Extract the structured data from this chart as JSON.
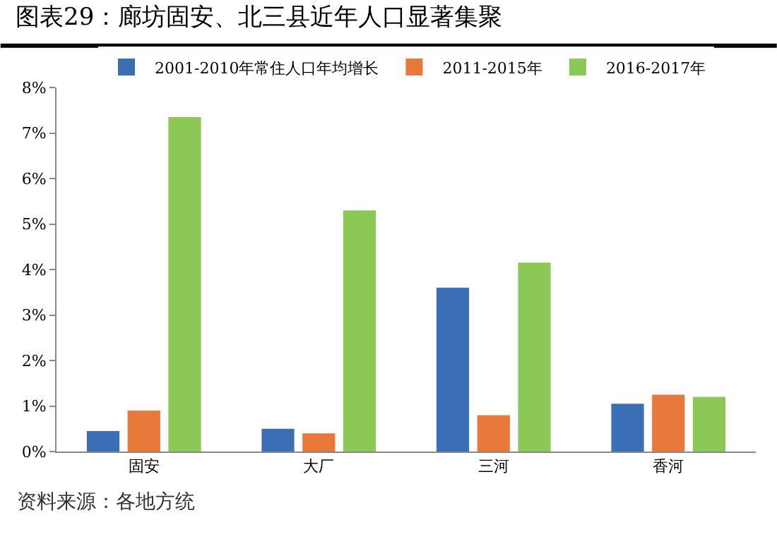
{
  "chart_data": {
    "type": "bar",
    "title": "图表29：廊坊固安、北三县近年人口显著集聚",
    "categories": [
      "固安",
      "大厂",
      "三河",
      "香河"
    ],
    "series": [
      {
        "name": "2001-2010年常住人口年均增长",
        "color": "#3a6fb5",
        "values": [
          0.45,
          0.5,
          3.6,
          1.05
        ]
      },
      {
        "name": "2011-2015年",
        "color": "#e8793a",
        "values": [
          0.9,
          0.4,
          0.8,
          1.25
        ]
      },
      {
        "name": "2016-2017年",
        "color": "#8cc856",
        "values": [
          7.35,
          5.3,
          4.15,
          1.2
        ]
      }
    ],
    "ylim": [
      0,
      8
    ],
    "yticks": [
      {
        "value": 0,
        "label": "0%"
      },
      {
        "value": 1,
        "label": "1%"
      },
      {
        "value": 2,
        "label": "2%"
      },
      {
        "value": 3,
        "label": "3%"
      },
      {
        "value": 4,
        "label": "4%"
      },
      {
        "value": 5,
        "label": "5%"
      },
      {
        "value": 6,
        "label": "6%"
      },
      {
        "value": 7,
        "label": "7%"
      },
      {
        "value": 8,
        "label": "8%"
      }
    ],
    "legend": "top",
    "annotations": [
      "资料来源：各地方统"
    ]
  }
}
